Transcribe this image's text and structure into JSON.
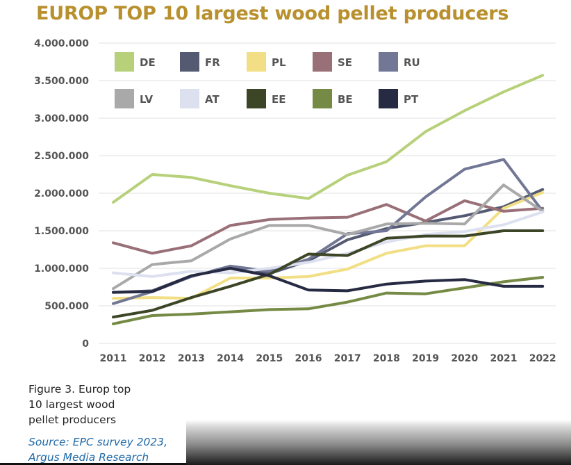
{
  "title": "EUROP TOP 10 largest wood pellet producers",
  "caption": [
    "Figure 3. Europ top",
    "10 largest wood",
    "pellet producers"
  ],
  "source": [
    "Source: EPC survey 2023,",
    "Argus Media Research"
  ],
  "colors": {
    "title": "#b8902e",
    "source": "#1f6aa8",
    "axis_text": "#555555",
    "grid": "#e2e2e2"
  },
  "chart_data": {
    "type": "line",
    "title": "EUROP TOP 10 largest wood pellet producers",
    "xlabel": "",
    "ylabel": "",
    "x": [
      "2011",
      "2012",
      "2013",
      "2014",
      "2015",
      "2016",
      "2017",
      "2018",
      "2019",
      "2020",
      "2021",
      "2022"
    ],
    "ylim": [
      0,
      4000000
    ],
    "yticks": [
      0,
      500000,
      1000000,
      1500000,
      2000000,
      2500000,
      3000000,
      3500000,
      4000000
    ],
    "ytick_labels": [
      "0",
      "500.000",
      "1.000.000",
      "1.500.000",
      "2.000.000",
      "2.500.000",
      "3.000.000",
      "3.500.000",
      "4.000.000"
    ],
    "grid": true,
    "legend_position": "top-left, inside plot, two rows",
    "series": [
      {
        "name": "DE",
        "color": "#b7d17a",
        "values": [
          1880000,
          2250000,
          2210000,
          2100000,
          2000000,
          1930000,
          2240000,
          2420000,
          2820000,
          3100000,
          3350000,
          3570000
        ]
      },
      {
        "name": "FR",
        "color": "#545a72",
        "values": [
          680000,
          700000,
          900000,
          1000000,
          930000,
          1100000,
          1380000,
          1530000,
          1610000,
          1700000,
          1820000,
          2050000
        ]
      },
      {
        "name": "PL",
        "color": "#f2df85",
        "values": [
          600000,
          610000,
          600000,
          870000,
          870000,
          890000,
          990000,
          1200000,
          1300000,
          1300000,
          1800000,
          2010000
        ]
      },
      {
        "name": "SE",
        "color": "#997078",
        "values": [
          1340000,
          1200000,
          1300000,
          1570000,
          1650000,
          1670000,
          1680000,
          1850000,
          1630000,
          1900000,
          1760000,
          1800000
        ]
      },
      {
        "name": "RU",
        "color": "#717794",
        "values": [
          530000,
          690000,
          890000,
          1030000,
          960000,
          1120000,
          1460000,
          1500000,
          1950000,
          2320000,
          2450000,
          1760000
        ]
      },
      {
        "name": "LV",
        "color": "#a9a9a9",
        "values": [
          730000,
          1050000,
          1100000,
          1390000,
          1570000,
          1570000,
          1450000,
          1590000,
          1600000,
          1590000,
          2110000,
          1760000
        ]
      },
      {
        "name": "AT",
        "color": "#dde1ef",
        "values": [
          940000,
          890000,
          960000,
          940000,
          1000000,
          1080000,
          1200000,
          1350000,
          1450000,
          1490000,
          1580000,
          1750000
        ]
      },
      {
        "name": "EE",
        "color": "#3c4526",
        "values": [
          350000,
          440000,
          610000,
          760000,
          920000,
          1190000,
          1170000,
          1400000,
          1430000,
          1430000,
          1500000,
          1500000
        ]
      },
      {
        "name": "BE",
        "color": "#758a44",
        "values": [
          260000,
          370000,
          390000,
          420000,
          450000,
          460000,
          550000,
          670000,
          660000,
          740000,
          820000,
          880000
        ]
      },
      {
        "name": "PT",
        "color": "#262a42",
        "values": [
          680000,
          690000,
          900000,
          1000000,
          900000,
          710000,
          700000,
          790000,
          830000,
          850000,
          760000,
          760000
        ]
      }
    ]
  }
}
